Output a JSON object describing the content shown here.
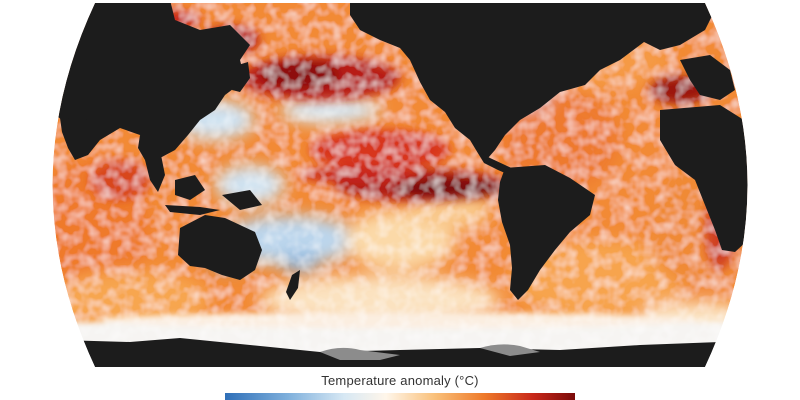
{
  "figure": {
    "legend_title": "Temperature anomaly (°C)",
    "colors": {
      "land": "#1c1c1c",
      "ice": "#8c8c8c",
      "sea_ice": "#f4f4f8",
      "background": "#ffffff",
      "warm_strong": "#8e0c0c",
      "warm": "#d8361a",
      "warm_mild": "#f59a3c",
      "neutral": "#fff4e4",
      "cool": "#9cc4e6",
      "cool_strong": "#3d7cc4"
    },
    "legend_scale": [
      "#2f6fb8",
      "#7fb0dc",
      "#d7e8f4",
      "#fff6ea",
      "#f9c07a",
      "#ee7a2a",
      "#c8281a",
      "#7a0a0a"
    ]
  }
}
